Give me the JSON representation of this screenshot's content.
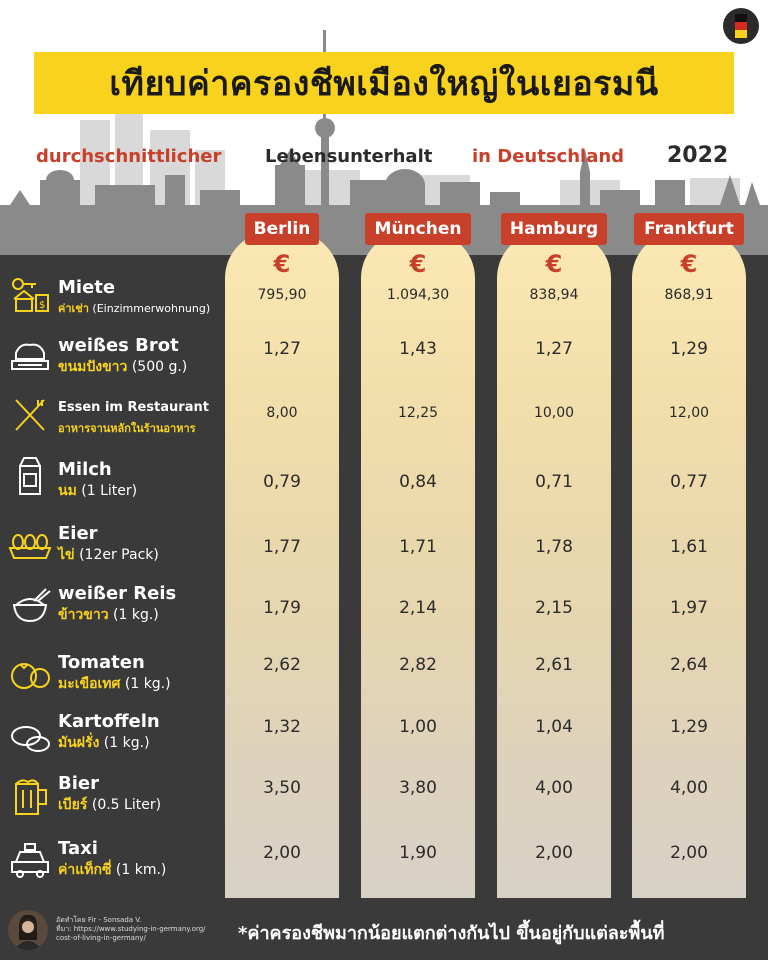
{
  "title": "เทียบค่าครองชีพเมืองใหญ่ในเยอรมนี",
  "subtitle": {
    "part1": "durchschnittlicher",
    "part2": "Lebensunterhalt",
    "part3": "in Deutschland",
    "year": "2022"
  },
  "currency_symbol": "€",
  "cities": [
    "Berlin",
    "München",
    "Hamburg",
    "Frankfurt"
  ],
  "rows": [
    {
      "de": "Miete",
      "th": "ค่าเช่า",
      "detail": " (Einzimmerwohnung)",
      "values": [
        "795,90",
        "1.094,30",
        "838,94",
        "868,91"
      ]
    },
    {
      "de": "weißes Brot",
      "th": "ขนมปังขาว",
      "detail": " (500 g.)",
      "values": [
        "1,27",
        "1,43",
        "1,27",
        "1,29"
      ]
    },
    {
      "de": "Essen im Restaurant",
      "th": "อาหารจานหลักในร้านอาหาร",
      "detail": "",
      "values": [
        "8,00",
        "12,25",
        "10,00",
        "12,00"
      ]
    },
    {
      "de": "Milch",
      "th": "นม",
      "detail": " (1 Liter)",
      "values": [
        "0,79",
        "0,84",
        "0,71",
        "0,77"
      ]
    },
    {
      "de": "Eier",
      "th": "ไข่",
      "detail": " (12er Pack)",
      "values": [
        "1,77",
        "1,71",
        "1,78",
        "1,61"
      ]
    },
    {
      "de": "weißer Reis",
      "th": "ข้าวขาว",
      "detail": " (1 kg.)",
      "values": [
        "1,79",
        "2,14",
        "2,15",
        "1,97"
      ]
    },
    {
      "de": "Tomaten",
      "th": "มะเขือเทศ",
      "detail": " (1 kg.)",
      "values": [
        "2,62",
        "2,82",
        "2,61",
        "2,64"
      ]
    },
    {
      "de": "Kartoffeln",
      "th": "มันฝรั่ง",
      "detail": " (1 kg.)",
      "values": [
        "1,32",
        "1,00",
        "1,04",
        "1,29"
      ]
    },
    {
      "de": "Bier",
      "th": "เบียร์",
      "detail": " (0.5 Liter)",
      "values": [
        "3,50",
        "3,80",
        "4,00",
        "4,00"
      ]
    },
    {
      "de": "Taxi",
      "th": "ค่าแท็กซี่",
      "detail": " (1 km.)",
      "values": [
        "2,00",
        "1,90",
        "2,00",
        "2,00"
      ]
    }
  ],
  "footer": {
    "note": "*ค่าครองชีพมากน้อยแตกต่างกันไป ขึ้นอยู่กับแต่ละพื้นที่",
    "credit_line1": "อัดทำโดย Fir - Sonsada V.",
    "credit_line2": "ที่มา: https://www.studying-in-germany.org/",
    "credit_line3": "cost-of-living-in-germany/"
  },
  "colors": {
    "accent_yellow": "#f8d21c",
    "accent_red": "#c8402a",
    "background": "#3a3a3a"
  },
  "icons": [
    "house-key-icon",
    "bread-icon",
    "fork-knife-icon",
    "milk-carton-icon",
    "eggs-icon",
    "rice-bowl-icon",
    "tomato-icon",
    "potato-icon",
    "beer-mug-icon",
    "taxi-icon"
  ]
}
